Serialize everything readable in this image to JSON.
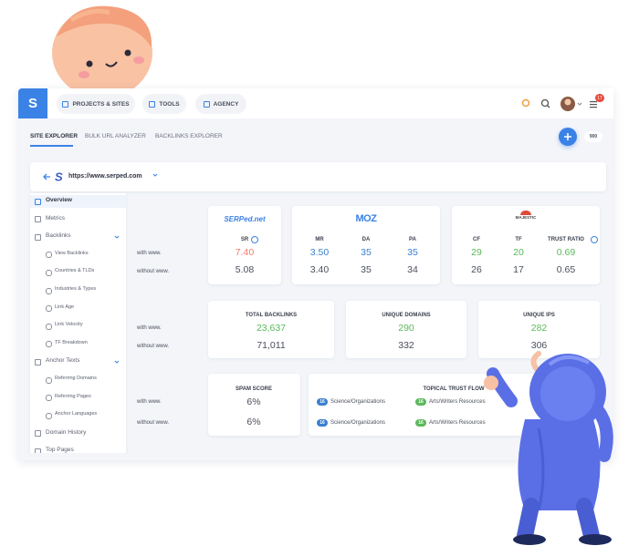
{
  "nav": {
    "brand": "S",
    "items": [
      "PROJECTS & SITES",
      "TOOLS",
      "AGENCY"
    ],
    "badge": "17"
  },
  "tabs": [
    "SITE EXPLORER",
    "BULK URL ANALYZER",
    "BACKLINKS EXPLORER"
  ],
  "credits": "900",
  "url": "https://www.serped.com",
  "sidebar": [
    {
      "label": "Overview",
      "level": 0,
      "active": true
    },
    {
      "label": "Metrics",
      "level": 0
    },
    {
      "label": "Backlinks",
      "level": 0,
      "expandable": true
    },
    {
      "label": "View Backlinks",
      "level": 1
    },
    {
      "label": "Countries & TLDs",
      "level": 1
    },
    {
      "label": "Industries & Types",
      "level": 1
    },
    {
      "label": "Link Age",
      "level": 1
    },
    {
      "label": "Link Velocity",
      "level": 1
    },
    {
      "label": "TF Breakdown",
      "level": 1
    },
    {
      "label": "Anchor Texts",
      "level": 0,
      "expandable": true
    },
    {
      "label": "Referring Domains",
      "level": 1
    },
    {
      "label": "Referring Pages",
      "level": 1
    },
    {
      "label": "Anchor Languages",
      "level": 1
    },
    {
      "label": "Domain History",
      "level": 0
    },
    {
      "label": "Top Pages",
      "level": 0
    }
  ],
  "sections": [
    {
      "row_labels": [
        "with www.",
        "without www."
      ],
      "cards": [
        {
          "logo": "SERPed.net",
          "color": "#f07b6a",
          "metrics": [
            {
              "label": "SR",
              "info": true,
              "with": "7.40",
              "without": "5.08"
            }
          ]
        },
        {
          "logo": "MOZ",
          "color": "#3b7fd0",
          "metrics": [
            {
              "label": "MR",
              "with": "3.50",
              "without": "3.40"
            },
            {
              "label": "DA",
              "with": "35",
              "without": "35"
            },
            {
              "label": "PA",
              "with": "35",
              "without": "34"
            }
          ]
        },
        {
          "logo": "MAJESTIC",
          "color": "#5cb85c",
          "metrics": [
            {
              "label": "CF",
              "with": "29",
              "without": "26"
            },
            {
              "label": "TF",
              "with": "20",
              "without": "17"
            },
            {
              "label": "TRUST RATIO",
              "info": true,
              "with": "0.69",
              "without": "0.65"
            }
          ]
        }
      ]
    },
    {
      "row_labels": [
        "with www.",
        "without www."
      ],
      "cards": [
        {
          "title": "TOTAL BACKLINKS",
          "with": "23,637",
          "without": "71,011"
        },
        {
          "title": "UNIQUE DOMAINS",
          "with": "290",
          "without": "332"
        },
        {
          "title": "UNIQUE IPS",
          "with": "282",
          "without": "306"
        }
      ]
    },
    {
      "row_labels": [
        "with www.",
        "without www."
      ],
      "spam": {
        "title": "SPAM SCORE",
        "with": "6%",
        "without": "6%"
      },
      "topical": {
        "title": "TOPICAL TRUST FLOW",
        "rows": [
          [
            {
              "count": "16",
              "topic": "Science/Organizations",
              "color": "#3b7fd0"
            },
            {
              "count": "16",
              "topic": "Arts/Writers Resources",
              "color": "#5cb85c"
            }
          ],
          [
            {
              "count": "16",
              "topic": "Science/Organizations",
              "color": "#3b7fd0"
            },
            {
              "count": "16",
              "topic": "Arts/Writers Resources",
              "color": "#5cb85c"
            }
          ]
        ]
      }
    }
  ]
}
